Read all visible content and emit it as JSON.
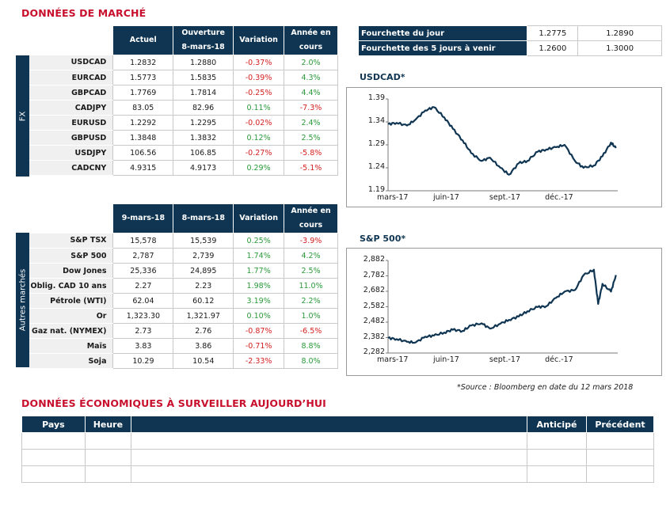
{
  "market_title": "DONNÉES DE MARCHÉ",
  "fx": {
    "side_label": "FX",
    "headers": {
      "c1": "Actuel",
      "c2a": "Ouverture",
      "c2b": "8-mars-18",
      "c3": "Variation",
      "c4a": "Année en",
      "c4b": "cours"
    },
    "rows": [
      {
        "name": "USDCAD",
        "actuel": "1.2832",
        "ouverture": "1.2880",
        "variation": "-0.37%",
        "annee": "2.0%"
      },
      {
        "name": "EURCAD",
        "actuel": "1.5773",
        "ouverture": "1.5835",
        "variation": "-0.39%",
        "annee": "4.3%"
      },
      {
        "name": "GBPCAD",
        "actuel": "1.7769",
        "ouverture": "1.7814",
        "variation": "-0.25%",
        "annee": "4.4%"
      },
      {
        "name": "CADJPY",
        "actuel": "83.05",
        "ouverture": "82.96",
        "variation": "0.11%",
        "annee": "-7.3%"
      },
      {
        "name": "EURUSD",
        "actuel": "1.2292",
        "ouverture": "1.2295",
        "variation": "-0.02%",
        "annee": "2.4%"
      },
      {
        "name": "GBPUSD",
        "actuel": "1.3848",
        "ouverture": "1.3832",
        "variation": "0.12%",
        "annee": "2.5%"
      },
      {
        "name": "USDJPY",
        "actuel": "106.56",
        "ouverture": "106.85",
        "variation": "-0.27%",
        "annee": "-5.8%"
      },
      {
        "name": "CADCNY",
        "actuel": "4.9315",
        "ouverture": "4.9173",
        "variation": "0.29%",
        "annee": "-5.1%"
      }
    ]
  },
  "autres": {
    "side_label": "Autres marchés",
    "headers": {
      "c1": "9-mars-18",
      "c2": "8-mars-18",
      "c3": "Variation",
      "c4a": "Année en",
      "c4b": "cours"
    },
    "rows": [
      {
        "name": "S&P TSX",
        "a": "15,578",
        "b": "15,539",
        "variation": "0.25%",
        "annee": "-3.9%"
      },
      {
        "name": "S&P 500",
        "a": "2,787",
        "b": "2,739",
        "variation": "1.74%",
        "annee": "4.2%"
      },
      {
        "name": "Dow Jones",
        "a": "25,336",
        "b": "24,895",
        "variation": "1.77%",
        "annee": "2.5%"
      },
      {
        "name": "Oblig. CAD 10 ans",
        "a": "2.27",
        "b": "2.23",
        "variation": "1.98%",
        "annee": "11.0%"
      },
      {
        "name": "Pétrole (WTI)",
        "a": "62.04",
        "b": "60.12",
        "variation": "3.19%",
        "annee": "2.2%"
      },
      {
        "name": "Or",
        "a": "1,323.30",
        "b": "1,321.97",
        "variation": "0.10%",
        "annee": "1.0%"
      },
      {
        "name": "Gaz nat. (NYMEX)",
        "a": "2.73",
        "b": "2.76",
        "variation": "-0.87%",
        "annee": "-6.5%"
      },
      {
        "name": "Maïs",
        "a": "3.83",
        "b": "3.86",
        "variation": "-0.71%",
        "annee": "8.8%"
      },
      {
        "name": "Soja",
        "a": "10.29",
        "b": "10.54",
        "variation": "-2.33%",
        "annee": "8.0%"
      }
    ]
  },
  "ranges": [
    {
      "label": "Fourchette du jour",
      "low": "1.2775",
      "high": "1.2890"
    },
    {
      "label": "Fourchette des 5 jours à venir",
      "low": "1.2600",
      "high": "1.3000"
    }
  ],
  "chart_data": [
    {
      "type": "line",
      "title": "USDCAD*",
      "x_ticks": [
        "mars-17",
        "juin-17",
        "sept.-17",
        "déc.-17"
      ],
      "y_ticks": [
        "1.39",
        "1.34",
        "1.29",
        "1.24",
        "1.19"
      ],
      "ylim": [
        1.19,
        1.39
      ],
      "grid": false,
      "x": [
        "2017-03-01",
        "2017-03-15",
        "2017-04-01",
        "2017-04-15",
        "2017-05-01",
        "2017-05-15",
        "2017-06-01",
        "2017-06-15",
        "2017-07-01",
        "2017-07-15",
        "2017-08-01",
        "2017-08-15",
        "2017-09-01",
        "2017-09-15",
        "2017-10-01",
        "2017-10-15",
        "2017-11-01",
        "2017-11-15",
        "2017-12-01",
        "2017-12-15",
        "2018-01-01",
        "2018-01-15",
        "2018-02-01",
        "2018-02-15",
        "2018-03-01",
        "2018-03-09"
      ],
      "series": [
        {
          "values": [
            1.335,
            1.338,
            1.332,
            1.345,
            1.365,
            1.372,
            1.35,
            1.325,
            1.3,
            1.272,
            1.255,
            1.262,
            1.24,
            1.225,
            1.25,
            1.255,
            1.275,
            1.28,
            1.285,
            1.29,
            1.255,
            1.24,
            1.245,
            1.265,
            1.295,
            1.283
          ]
        }
      ]
    },
    {
      "type": "line",
      "title": "S&P 500*",
      "x_ticks": [
        "mars-17",
        "juin-17",
        "sept.-17",
        "déc.-17"
      ],
      "y_ticks": [
        "2,882",
        "2,782",
        "2,682",
        "2,582",
        "2,482",
        "2,382",
        "2,282"
      ],
      "ylim": [
        2282,
        2882
      ],
      "grid": false,
      "x": [
        "2017-03-01",
        "2017-03-15",
        "2017-04-01",
        "2017-04-15",
        "2017-05-01",
        "2017-05-15",
        "2017-06-01",
        "2017-06-15",
        "2017-07-01",
        "2017-07-15",
        "2017-08-01",
        "2017-08-15",
        "2017-09-01",
        "2017-09-15",
        "2017-10-01",
        "2017-10-15",
        "2017-11-01",
        "2017-11-15",
        "2017-12-01",
        "2017-12-15",
        "2018-01-01",
        "2018-01-15",
        "2018-02-01",
        "2018-02-08",
        "2018-02-15",
        "2018-03-01",
        "2018-03-09"
      ],
      "series": [
        {
          "values": [
            2380,
            2372,
            2355,
            2350,
            2388,
            2395,
            2415,
            2433,
            2425,
            2460,
            2475,
            2440,
            2472,
            2497,
            2519,
            2553,
            2580,
            2585,
            2640,
            2680,
            2690,
            2786,
            2822,
            2600,
            2730,
            2680,
            2787
          ]
        }
      ]
    }
  ],
  "source": "*Source : Bloomberg en date du  12 mars 2018",
  "eco_title": "DONNÉES ÉCONOMIQUES À SURVEILLER AUJOURD’HUI",
  "eco_headers": {
    "pays": "Pays",
    "heure": "Heure",
    "desc": "",
    "anticipe": "Anticipé",
    "precedent": "Précédent"
  },
  "colors": {
    "navy": "#0f3552",
    "red": "#c8102e",
    "negative": "#d42020",
    "positive": "#2b9a3a",
    "line": "#0f3552"
  }
}
